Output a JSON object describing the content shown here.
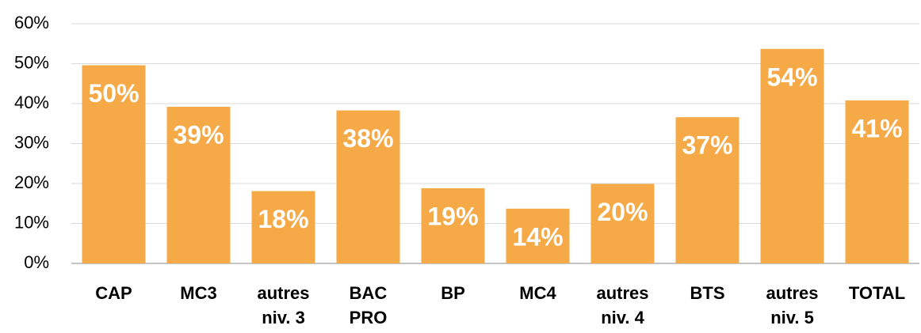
{
  "chart_data": {
    "type": "bar",
    "categories": [
      "CAP",
      "MC3",
      "autres niv. 3",
      "BAC PRO",
      "BP",
      "MC4",
      "autres niv. 4",
      "BTS",
      "autres niv. 5",
      "TOTAL"
    ],
    "values": [
      49.6,
      39.2,
      18.1,
      38.3,
      18.8,
      13.7,
      19.9,
      36.6,
      53.7,
      40.8
    ],
    "value_labels": [
      "50%",
      "39%",
      "18%",
      "38%",
      "19%",
      "14%",
      "20%",
      "37%",
      "54%",
      "41%"
    ],
    "color": "#f5a947",
    "ylim": [
      0,
      60
    ],
    "yticks": [
      {
        "value": 0,
        "label": "0%"
      },
      {
        "value": 10,
        "label": "10%"
      },
      {
        "value": 20,
        "label": "20%"
      },
      {
        "value": 30,
        "label": "30%"
      },
      {
        "value": 40,
        "label": "40%"
      },
      {
        "value": 50,
        "label": "50%"
      },
      {
        "value": 60,
        "label": "60%"
      }
    ],
    "grid": true
  }
}
